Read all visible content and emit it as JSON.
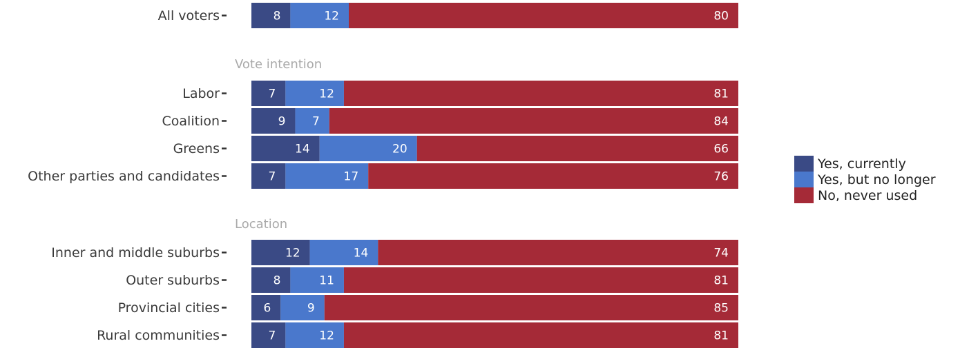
{
  "chart_data": {
    "type": "bar",
    "orientation": "horizontal",
    "stacked": true,
    "xlim": [
      0,
      100
    ],
    "grid": false,
    "legend_position": "right",
    "series": [
      {
        "name": "Yes, currently",
        "color": "#3a4a85"
      },
      {
        "name": "Yes, but no longer",
        "color": "#4a78cc"
      },
      {
        "name": "No, never used",
        "color": "#a52a37"
      }
    ],
    "groups": [
      {
        "label": "",
        "rows": [
          {
            "category": "All voters",
            "values": [
              8,
              12,
              80
            ]
          }
        ]
      },
      {
        "label": "Vote intention",
        "rows": [
          {
            "category": "Labor",
            "values": [
              7,
              12,
              81
            ]
          },
          {
            "category": "Coalition",
            "values": [
              9,
              7,
              84
            ]
          },
          {
            "category": "Greens",
            "values": [
              14,
              20,
              66
            ]
          },
          {
            "category": "Other parties and candidates",
            "values": [
              7,
              17,
              76
            ]
          }
        ]
      },
      {
        "label": "Location",
        "rows": [
          {
            "category": "Inner and middle suburbs",
            "values": [
              12,
              14,
              74
            ]
          },
          {
            "category": "Outer suburbs",
            "values": [
              8,
              11,
              81
            ]
          },
          {
            "category": "Provincial cities",
            "values": [
              6,
              9,
              85
            ]
          },
          {
            "category": "Rural communities",
            "values": [
              7,
              12,
              81
            ]
          }
        ]
      }
    ]
  }
}
